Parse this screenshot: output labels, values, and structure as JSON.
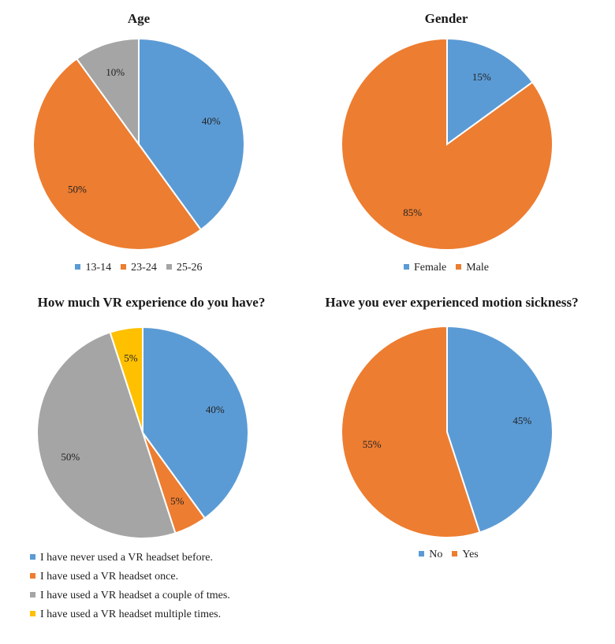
{
  "chart_data": [
    {
      "type": "pie",
      "title": "Age",
      "categories": [
        "13-14",
        "23-24",
        "25-26"
      ],
      "values": [
        40,
        50,
        10
      ],
      "labels": [
        "40%",
        "50%",
        "10%"
      ],
      "colors": [
        "#5b9bd5",
        "#ed7d31",
        "#a5a5a5"
      ],
      "legend_position": "bottom"
    },
    {
      "type": "pie",
      "title": "Gender",
      "categories": [
        "Female",
        "Male"
      ],
      "values": [
        15,
        85
      ],
      "labels": [
        "15%",
        "85%"
      ],
      "colors": [
        "#5b9bd5",
        "#ed7d31"
      ],
      "legend_position": "bottom"
    },
    {
      "type": "pie",
      "title": "How much VR experience do you have?",
      "categories": [
        "I have never used a VR headset before.",
        "I have used a VR headset once.",
        "I have used a VR headset a couple of tmes.",
        "I have used a VR headset multiple times."
      ],
      "values": [
        40,
        5,
        50,
        5
      ],
      "labels": [
        "40%",
        "5%",
        "50%",
        "5%"
      ],
      "colors": [
        "#5b9bd5",
        "#ed7d31",
        "#a5a5a5",
        "#ffc000"
      ],
      "legend_position": "bottom"
    },
    {
      "type": "pie",
      "title": "Have you ever experienced motion sickness?",
      "categories": [
        "No",
        "Yes"
      ],
      "values": [
        45,
        55
      ],
      "labels": [
        "45%",
        "55%"
      ],
      "colors": [
        "#5b9bd5",
        "#ed7d31"
      ],
      "legend_position": "bottom"
    }
  ]
}
